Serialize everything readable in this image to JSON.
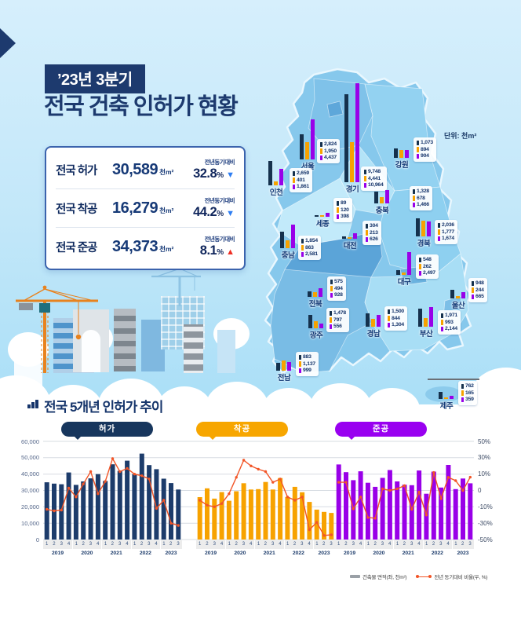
{
  "colors": {
    "navy": "#1d3c6b",
    "map_navy": "#15314d",
    "orange": "#f7a200",
    "purple": "#9900e8",
    "line": "#f25527",
    "down_arrow": "#2e7ef2",
    "up_arrow": "#ee2f24",
    "title_navy": "#1d3a6e"
  },
  "header": {
    "badge": "’23년 3분기",
    "title": "전국 건축 인허가 현황"
  },
  "summary": {
    "rows": [
      {
        "label": "전국 허가",
        "value": "30,589",
        "unit": "천m²",
        "compare": "전년동기대비",
        "pct": "32.8",
        "pct_suffix": "%",
        "direction": "down"
      },
      {
        "label": "전국 착공",
        "value": "16,279",
        "unit": "천m²",
        "compare": "전년동기대비",
        "pct": "44.2",
        "pct_suffix": "%",
        "direction": "down"
      },
      {
        "label": "전국 준공",
        "value": "34,373",
        "unit": "천m²",
        "compare": "전년동기대비",
        "pct": "8.1",
        "pct_suffix": "%",
        "direction": "up"
      }
    ]
  },
  "map": {
    "unit_label": "단위: 천m²",
    "regions": [
      {
        "name": "서울",
        "permit": "2,824",
        "start": "1,950",
        "complete": "4,437"
      },
      {
        "name": "경기",
        "permit": "9,748",
        "start": "4,441",
        "complete": "10,964"
      },
      {
        "name": "인천",
        "permit": "2,659",
        "start": "401",
        "complete": "1,861"
      },
      {
        "name": "강원",
        "permit": "1,073",
        "start": "894",
        "complete": "904"
      },
      {
        "name": "세종",
        "permit": "89",
        "start": "120",
        "complete": "398"
      },
      {
        "name": "충북",
        "permit": "1,328",
        "start": "678",
        "complete": "1,466"
      },
      {
        "name": "충남",
        "permit": "1,854",
        "start": "863",
        "complete": "2,581"
      },
      {
        "name": "대전",
        "permit": "304",
        "start": "213",
        "complete": "626"
      },
      {
        "name": "경북",
        "permit": "2,036",
        "start": "1,777",
        "complete": "1,674"
      },
      {
        "name": "대구",
        "permit": "548",
        "start": "262",
        "complete": "2,497"
      },
      {
        "name": "전북",
        "permit": "575",
        "start": "494",
        "complete": "928"
      },
      {
        "name": "울산",
        "permit": "948",
        "start": "244",
        "complete": "665"
      },
      {
        "name": "광주",
        "permit": "1,478",
        "start": "797",
        "complete": "556"
      },
      {
        "name": "경남",
        "permit": "1,500",
        "start": "844",
        "complete": "1,304"
      },
      {
        "name": "부산",
        "permit": "1,971",
        "start": "993",
        "complete": "2,144"
      },
      {
        "name": "전남",
        "permit": "883",
        "start": "1,137",
        "complete": "999"
      },
      {
        "name": "제주",
        "permit": "762",
        "start": "165",
        "complete": "359"
      }
    ]
  },
  "trend": {
    "title": "전국 5개년 인허가 추이",
    "quarters": [
      "1",
      "2",
      "3",
      "4",
      "1",
      "2",
      "3",
      "4",
      "1",
      "2",
      "3",
      "4",
      "1",
      "2",
      "3",
      "4",
      "1",
      "2",
      "3"
    ],
    "years": [
      "2019",
      "2020",
      "2021",
      "2022",
      "2023"
    ],
    "left_ticks": [
      "60,000",
      "50,000",
      "40,000",
      "30,000",
      "20,000",
      "10,000",
      "0"
    ],
    "right_ticks": [
      "50%",
      "30%",
      "10%",
      "0",
      "-10%",
      "-30%",
      "-50%"
    ],
    "legend": [
      {
        "swatch": "bar",
        "label": "건축물 면적(좌, 천m²)"
      },
      {
        "swatch": "line",
        "label": "전년 동기대비 비율(우, %)"
      }
    ]
  },
  "chart_data": [
    {
      "type": "bar+line",
      "tab": "허가",
      "bar_color": "#1d3c6b",
      "tab_color": "#17365d",
      "xlabel": "",
      "ylabel_left": "건축물 면적(천m²)",
      "ylabel_right": "전년 동기대비 비율(%)",
      "ylim_left": [
        0,
        60000
      ],
      "right_axis_ticks_pct": [
        50,
        30,
        10,
        0,
        -10,
        -30,
        -50
      ],
      "series": [
        {
          "name": "건축물 면적(좌, 천m²)",
          "type": "bar",
          "values": [
            35000,
            34200,
            33800,
            41000,
            33400,
            35500,
            37400,
            40000,
            35800,
            46000,
            42000,
            48200,
            40000,
            52500,
            45500,
            43000,
            37200,
            34500,
            30589
          ]
        },
        {
          "name": "전년 동기대비 비율(우, %)",
          "type": "line",
          "axis": "right",
          "values": [
            -13,
            -15,
            -14,
            1.5,
            -4,
            4,
            13,
            -2,
            5.5,
            29,
            13,
            17,
            10,
            9,
            7,
            -12,
            -6,
            -30,
            -32.8
          ]
        }
      ]
    },
    {
      "type": "bar+line",
      "tab": "착공",
      "bar_color": "#f7a200",
      "tab_color": "#f7a600",
      "xlabel": "",
      "ylabel_left": "건축물 면적(천m²)",
      "ylabel_right": "전년 동기대비 비율(%)",
      "ylim_left": [
        0,
        60000
      ],
      "right_axis_ticks_pct": [
        50,
        30,
        10,
        0,
        -10,
        -30,
        -50
      ],
      "series": [
        {
          "name": "건축물 면적(좌, 천m²)",
          "type": "bar",
          "values": [
            25900,
            31300,
            25000,
            29000,
            23700,
            29500,
            34400,
            30600,
            30800,
            35200,
            30600,
            37600,
            26000,
            32200,
            28900,
            23000,
            18300,
            16900,
            16279
          ]
        },
        {
          "name": "전년 동기대비 비율(우, %)",
          "type": "line",
          "axis": "right",
          "values": [
            -6,
            -9,
            -10,
            -8,
            -2,
            8,
            27,
            20,
            16,
            13,
            5,
            7,
            -4,
            -6,
            -4,
            -38,
            -29,
            -45,
            -44.2
          ]
        }
      ]
    },
    {
      "type": "bar+line",
      "tab": "준공",
      "bar_color": "#9900e8",
      "tab_color": "#9900f0",
      "xlabel": "",
      "ylabel_left": "건축물 면적(천m²)",
      "ylabel_right": "전년 동기대비 비율(%)",
      "ylim_left": [
        0,
        60000
      ],
      "right_axis_ticks_pct": [
        50,
        30,
        10,
        0,
        -10,
        -30,
        -50
      ],
      "series": [
        {
          "name": "건축물 면적(좌, 천m²)",
          "type": "bar",
          "values": [
            45900,
            41200,
            36300,
            41700,
            34700,
            32200,
            37700,
            42500,
            35500,
            33500,
            33200,
            42200,
            28000,
            41500,
            31800,
            45600,
            30800,
            37300,
            34373
          ]
        },
        {
          "name": "전년 동기대비 비율(우, %)",
          "type": "line",
          "axis": "right",
          "values": [
            5,
            5,
            -12.5,
            -4,
            -23,
            -24,
            1,
            0,
            1,
            3,
            -13,
            -1,
            -20,
            12,
            -5,
            8,
            6,
            0,
            8.1
          ]
        }
      ]
    }
  ]
}
